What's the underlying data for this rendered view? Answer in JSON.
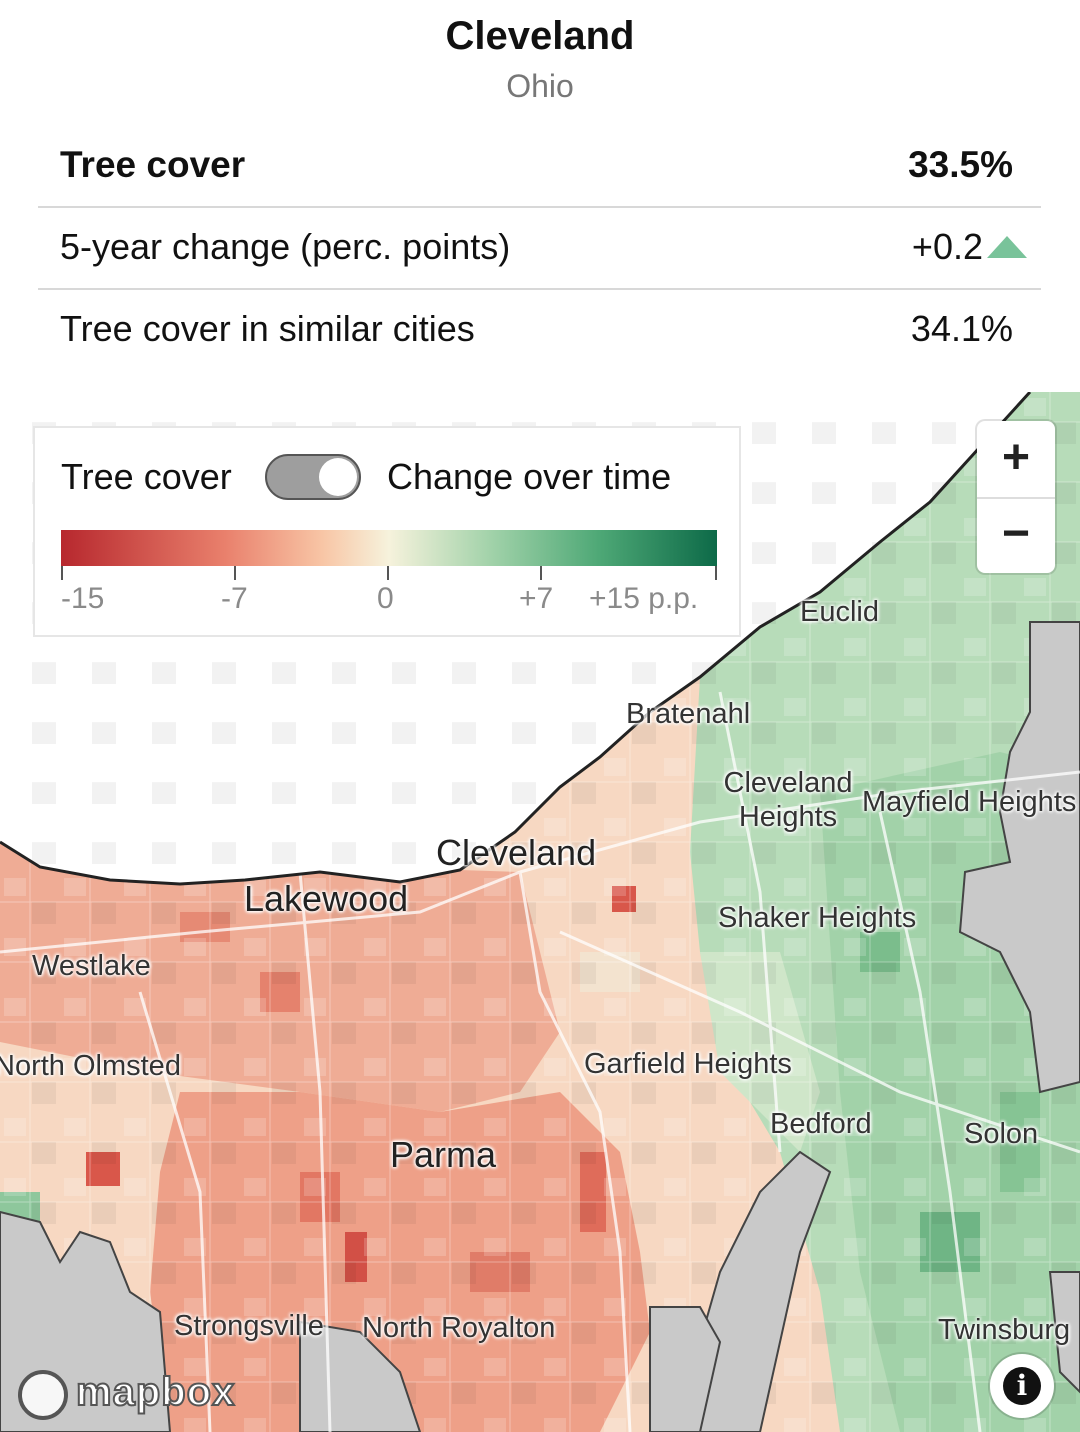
{
  "header": {
    "city": "Cleveland",
    "state": "Ohio"
  },
  "stats": {
    "tree_cover": {
      "label": "Tree cover",
      "value": "33.5%"
    },
    "change": {
      "label": "5-year change (perc. points)",
      "value": "+0.2",
      "direction": "up",
      "arrow_color": "#79c39a"
    },
    "similar": {
      "label": "Tree cover in similar cities",
      "value": "34.1%"
    }
  },
  "legend": {
    "toggle_left": "Tree cover",
    "toggle_right": "Change over time",
    "toggle_state": "change-over-time",
    "ticks": [
      "-15",
      "-7",
      "0",
      "+7",
      "+15 p.p."
    ],
    "colors": {
      "negative": "#b7282e",
      "neutral": "#f6f2dc",
      "positive": "#0d6a48"
    }
  },
  "map": {
    "places": [
      "Euclid",
      "Bratenahl",
      "Cleveland Heights",
      "Mayfield Heights",
      "Cleveland",
      "Lakewood",
      "Shaker Heights",
      "Westlake",
      "North Olmsted",
      "Garfield Heights",
      "Bedford",
      "Solon",
      "Parma",
      "Strongsville",
      "North Royalton",
      "Twinsburg"
    ],
    "zoom_in": "+",
    "zoom_out": "−",
    "info": "i",
    "attribution": "mapbox"
  }
}
